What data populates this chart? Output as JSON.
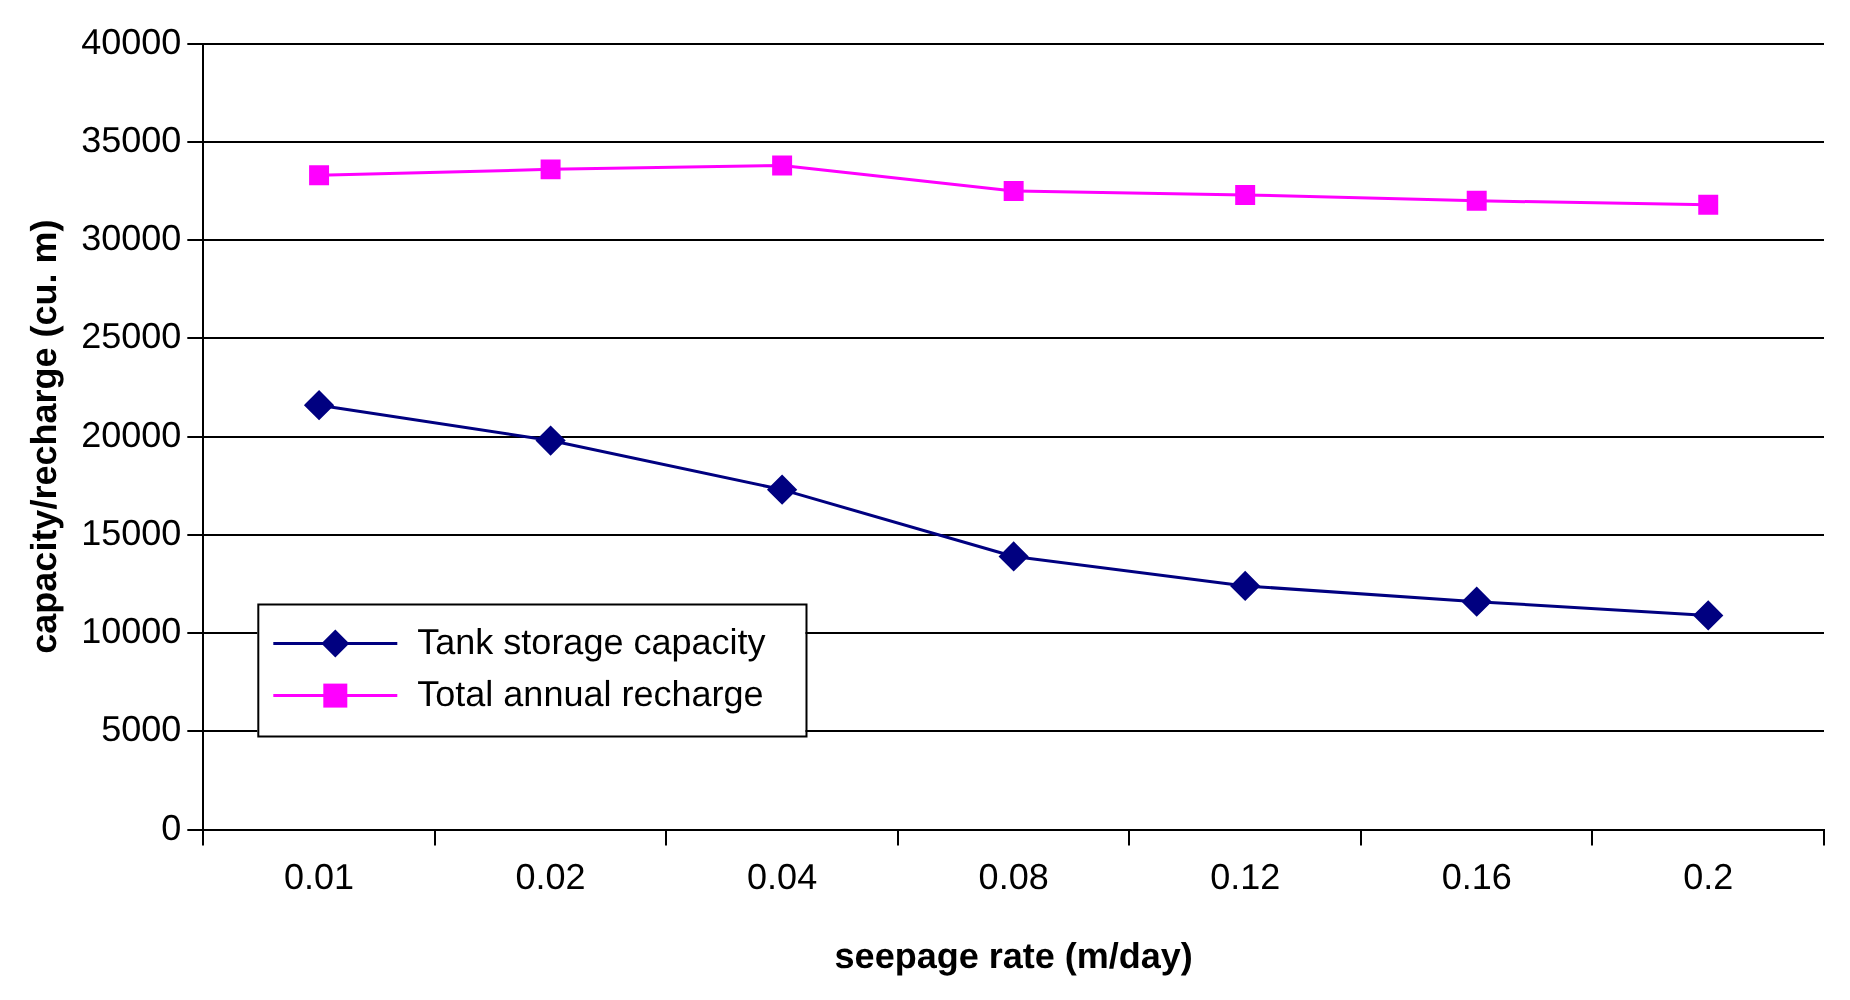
{
  "chart_data": {
    "type": "line",
    "xlabel": "seepage rate (m/day)",
    "ylabel": "capacity/recharge (cu. m)",
    "categories": [
      "0.01",
      "0.02",
      "0.04",
      "0.08",
      "0.12",
      "0.16",
      "0.2"
    ],
    "series": [
      {
        "name": "Tank storage capacity",
        "color": "#000080",
        "marker": "diamond",
        "values": [
          21600,
          19800,
          17300,
          13900,
          12400,
          11600,
          10900
        ]
      },
      {
        "name": "Total annual recharge",
        "color": "#ff00ff",
        "marker": "square",
        "values": [
          33300,
          33600,
          33800,
          32500,
          32300,
          32000,
          31800
        ]
      }
    ],
    "ylim": [
      0,
      40000
    ],
    "yticks": [
      0,
      5000,
      10000,
      15000,
      20000,
      25000,
      30000,
      35000,
      40000
    ],
    "grid": "y",
    "legend": "bottom left",
    "line_style": "solid"
  }
}
